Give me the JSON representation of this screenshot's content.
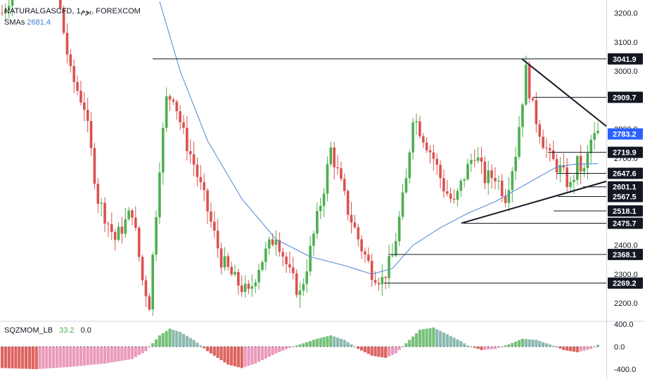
{
  "legend": {
    "symbol_line": "NATURALGASCFD, 1يوم, FOREXCOM",
    "sma_label": "SMAs",
    "sma_value": "2681.4",
    "sqz_label": "SQZMOM_LB",
    "sqz_value1": "33.2",
    "sqz_value2": "0.0"
  },
  "colors": {
    "up": "#26a69a",
    "down": "#ef5350",
    "candle_up": "#4caf50",
    "candle_down": "#d9534f",
    "sma": "#5b8fd6",
    "current_price": "#2962ff",
    "label_bg": "#131722",
    "momentum_green": "#66bb6a",
    "momentum_teal": "#7fb3a8",
    "momentum_red": "#d9534f",
    "momentum_pink": "#e88fb4"
  },
  "chart_data": [
    {
      "type": "candlestick",
      "ylim": [
        2140,
        3240
      ],
      "y_ticks": [
        "3200.0",
        "3100.0",
        "3000.0",
        "2800.0",
        "2700.0",
        "2600.0",
        "2400.0",
        "2300.0",
        "2200.0"
      ],
      "sma_value": 2681.4,
      "current_price": "2783.2",
      "horizontal_levels": [
        "3041.9",
        "2909.7",
        "2719.9",
        "2647.6",
        "2601.1",
        "2567.5",
        "2518.1",
        "2475.7",
        "2368.1",
        "2269.2"
      ],
      "level_values": [
        3041.9,
        2909.7,
        2719.9,
        2647.6,
        2601.1,
        2567.5,
        2518.1,
        2475.7,
        2368.1,
        2269.2
      ],
      "trendlines": [
        {
          "name": "resistance",
          "from": 3041.9,
          "to": 2810
        },
        {
          "name": "support",
          "from": 2475.7,
          "to": 2620
        }
      ]
    },
    {
      "type": "bar",
      "name": "SQZMOM_LB",
      "ylim": [
        -480,
        480
      ],
      "y_ticks": [
        "400.0",
        "0.0",
        "-400.0"
      ],
      "value": 33.2
    }
  ]
}
